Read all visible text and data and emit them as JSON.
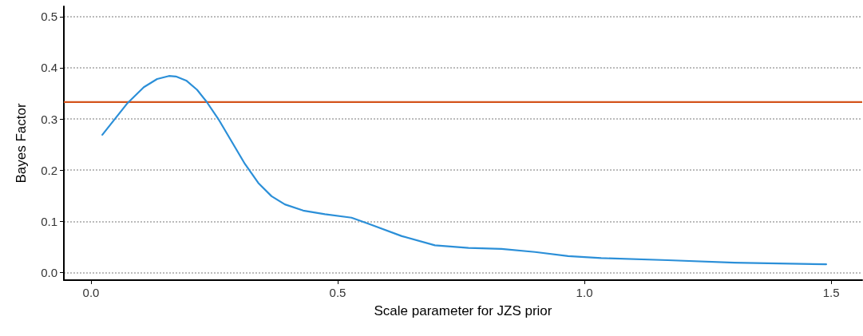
{
  "chart_data": {
    "type": "line",
    "xlabel": "Scale parameter for JZS prior",
    "ylabel": "Bayes Factor",
    "xlim": [
      -0.055,
      1.563
    ],
    "xticks": [
      {
        "value": 0,
        "label": "0.0"
      },
      0.5,
      {
        "value": 1,
        "label": "1.0"
      },
      1.5
    ],
    "ylim": [
      -0.015,
      0.52
    ],
    "yticks": [
      {
        "value": 0,
        "label": "0.0"
      },
      0.1,
      0.2,
      0.3,
      0.4,
      0.5
    ],
    "grid": "y",
    "marker": "none",
    "line_style": "solid",
    "ref_lines": [
      {
        "axis": "y",
        "value": 0.333,
        "color": "#d4541c"
      }
    ],
    "series": [
      {
        "color": "#2b8fd8",
        "x": [
          0.023,
          0.074,
          0.107,
          0.134,
          0.158,
          0.172,
          0.193,
          0.215,
          0.234,
          0.258,
          0.285,
          0.312,
          0.339,
          0.366,
          0.393,
          0.43,
          0.474,
          0.528,
          0.563,
          0.63,
          0.697,
          0.765,
          0.832,
          0.9,
          0.967,
          1.034,
          1.169,
          1.304,
          1.49
        ],
        "values": [
          0.269,
          0.331,
          0.362,
          0.378,
          0.384,
          0.383,
          0.375,
          0.357,
          0.334,
          0.3,
          0.256,
          0.212,
          0.175,
          0.149,
          0.133,
          0.121,
          0.114,
          0.107,
          0.095,
          0.071,
          0.053,
          0.048,
          0.046,
          0.04,
          0.032,
          0.028,
          0.024,
          0.019,
          0.016
        ]
      }
    ]
  }
}
